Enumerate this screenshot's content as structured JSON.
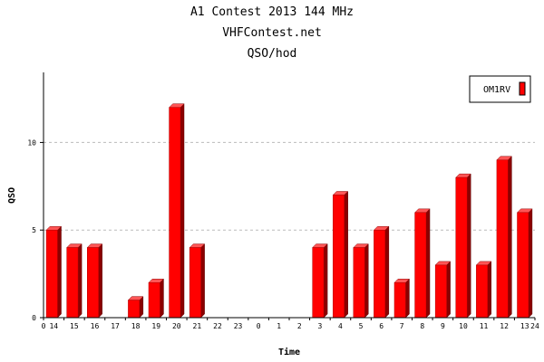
{
  "header": {
    "title": "A1 Contest 2013 144 MHz",
    "subtitle": "VHFContest.net",
    "subtitle2": "QSO/hod"
  },
  "chart_data": {
    "type": "bar",
    "title": "A1 Contest 2013 144 MHz",
    "subtitle": "VHFContest.net",
    "subtitle2": "QSO/hod",
    "xlabel": "Time",
    "ylabel": "QSO",
    "categories": [
      "14",
      "15",
      "16",
      "17",
      "18",
      "19",
      "20",
      "21",
      "22",
      "23",
      "0",
      "1",
      "2",
      "3",
      "4",
      "5",
      "6",
      "7",
      "8",
      "9",
      "10",
      "11",
      "12",
      "13"
    ],
    "series": [
      {
        "name": "OM1RV",
        "color": "#ff0000",
        "values": [
          5,
          4,
          4,
          0,
          1,
          2,
          12,
          4,
          0,
          0,
          0,
          0,
          0,
          4,
          7,
          4,
          5,
          2,
          6,
          3,
          8,
          3,
          9,
          6
        ]
      }
    ],
    "x_axis_end_labels": [
      "0",
      "24"
    ],
    "ylim": [
      0,
      14
    ],
    "yticks": [
      0,
      5,
      10
    ],
    "grid": true,
    "legend_position": "top-right"
  }
}
